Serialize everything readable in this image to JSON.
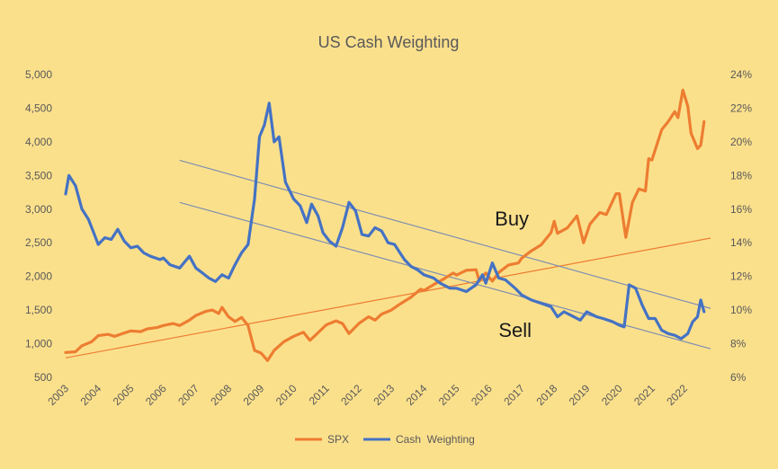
{
  "chart_data": {
    "type": "line",
    "title": "US Cash Weighting",
    "x_ticks": [
      "2003",
      "2004",
      "2005",
      "2006",
      "2007",
      "2008",
      "2009",
      "2010",
      "2011",
      "2012",
      "2013",
      "2014",
      "2015",
      "2016",
      "2017",
      "2018",
      "2019",
      "2020",
      "2021",
      "2022"
    ],
    "y_left_ticks": [
      "500",
      "1,000",
      "1,500",
      "2,000",
      "2,500",
      "3,000",
      "3,500",
      "4,000",
      "4,500",
      "5,000"
    ],
    "y_right_ticks": [
      "6%",
      "8%",
      "10%",
      "12%",
      "14%",
      "16%",
      "18%",
      "20%",
      "22%",
      "24%"
    ],
    "y_left_range": [
      500,
      5000
    ],
    "y_right_range": [
      6,
      24
    ],
    "x_range": [
      2003,
      2022.8
    ],
    "grid": false,
    "legend_position": "bottom",
    "colors": {
      "background": "#fbe08c",
      "spx": "#ed7d31",
      "cash": "#4472c4",
      "text": "#595959",
      "channel": "#7f8fb0"
    },
    "series": [
      {
        "name": "SPX",
        "axis": "left",
        "points": [
          [
            2003.0,
            870
          ],
          [
            2003.3,
            880
          ],
          [
            2003.5,
            970
          ],
          [
            2003.8,
            1030
          ],
          [
            2004.0,
            1120
          ],
          [
            2004.3,
            1140
          ],
          [
            2004.5,
            1110
          ],
          [
            2004.8,
            1160
          ],
          [
            2005.0,
            1190
          ],
          [
            2005.3,
            1180
          ],
          [
            2005.5,
            1220
          ],
          [
            2005.8,
            1240
          ],
          [
            2006.0,
            1270
          ],
          [
            2006.3,
            1300
          ],
          [
            2006.5,
            1270
          ],
          [
            2006.8,
            1350
          ],
          [
            2007.0,
            1420
          ],
          [
            2007.3,
            1480
          ],
          [
            2007.5,
            1500
          ],
          [
            2007.7,
            1450
          ],
          [
            2007.8,
            1540
          ],
          [
            2008.0,
            1400
          ],
          [
            2008.2,
            1330
          ],
          [
            2008.4,
            1390
          ],
          [
            2008.6,
            1270
          ],
          [
            2008.8,
            900
          ],
          [
            2009.0,
            860
          ],
          [
            2009.2,
            750
          ],
          [
            2009.4,
            900
          ],
          [
            2009.7,
            1030
          ],
          [
            2010.0,
            1110
          ],
          [
            2010.3,
            1170
          ],
          [
            2010.5,
            1050
          ],
          [
            2010.7,
            1140
          ],
          [
            2011.0,
            1280
          ],
          [
            2011.3,
            1340
          ],
          [
            2011.5,
            1300
          ],
          [
            2011.7,
            1150
          ],
          [
            2012.0,
            1300
          ],
          [
            2012.3,
            1400
          ],
          [
            2012.5,
            1350
          ],
          [
            2012.7,
            1440
          ],
          [
            2013.0,
            1500
          ],
          [
            2013.3,
            1600
          ],
          [
            2013.6,
            1690
          ],
          [
            2013.9,
            1810
          ],
          [
            2014.0,
            1790
          ],
          [
            2014.3,
            1880
          ],
          [
            2014.6,
            1960
          ],
          [
            2014.9,
            2050
          ],
          [
            2015.0,
            2020
          ],
          [
            2015.3,
            2090
          ],
          [
            2015.6,
            2100
          ],
          [
            2015.7,
            1930
          ],
          [
            2015.9,
            2050
          ],
          [
            2016.1,
            1930
          ],
          [
            2016.3,
            2060
          ],
          [
            2016.6,
            2170
          ],
          [
            2016.9,
            2200
          ],
          [
            2017.0,
            2270
          ],
          [
            2017.3,
            2380
          ],
          [
            2017.6,
            2470
          ],
          [
            2017.9,
            2650
          ],
          [
            2018.0,
            2820
          ],
          [
            2018.1,
            2640
          ],
          [
            2018.4,
            2720
          ],
          [
            2018.7,
            2900
          ],
          [
            2018.9,
            2500
          ],
          [
            2019.1,
            2780
          ],
          [
            2019.4,
            2950
          ],
          [
            2019.6,
            2920
          ],
          [
            2019.9,
            3230
          ],
          [
            2020.0,
            3230
          ],
          [
            2020.2,
            2580
          ],
          [
            2020.4,
            3100
          ],
          [
            2020.6,
            3300
          ],
          [
            2020.8,
            3270
          ],
          [
            2020.9,
            3750
          ],
          [
            2021.0,
            3730
          ],
          [
            2021.3,
            4180
          ],
          [
            2021.5,
            4300
          ],
          [
            2021.7,
            4450
          ],
          [
            2021.8,
            4360
          ],
          [
            2021.95,
            4770
          ],
          [
            2022.1,
            4530
          ],
          [
            2022.2,
            4130
          ],
          [
            2022.4,
            3900
          ],
          [
            2022.5,
            3950
          ],
          [
            2022.6,
            4300
          ]
        ]
      },
      {
        "name": "Cash Weighting",
        "axis": "right",
        "points": [
          [
            2003.0,
            16.9
          ],
          [
            2003.1,
            18.0
          ],
          [
            2003.3,
            17.4
          ],
          [
            2003.5,
            16.0
          ],
          [
            2003.7,
            15.4
          ],
          [
            2003.9,
            14.4
          ],
          [
            2004.0,
            13.9
          ],
          [
            2004.2,
            14.3
          ],
          [
            2004.4,
            14.2
          ],
          [
            2004.6,
            14.8
          ],
          [
            2004.8,
            14.1
          ],
          [
            2005.0,
            13.7
          ],
          [
            2005.2,
            13.8
          ],
          [
            2005.4,
            13.4
          ],
          [
            2005.6,
            13.2
          ],
          [
            2005.9,
            13.0
          ],
          [
            2006.0,
            13.1
          ],
          [
            2006.2,
            12.7
          ],
          [
            2006.5,
            12.5
          ],
          [
            2006.8,
            13.2
          ],
          [
            2007.0,
            12.5
          ],
          [
            2007.2,
            12.2
          ],
          [
            2007.4,
            11.9
          ],
          [
            2007.6,
            11.7
          ],
          [
            2007.8,
            12.1
          ],
          [
            2008.0,
            11.9
          ],
          [
            2008.2,
            12.7
          ],
          [
            2008.4,
            13.4
          ],
          [
            2008.6,
            13.9
          ],
          [
            2008.8,
            16.6
          ],
          [
            2008.95,
            20.3
          ],
          [
            2009.1,
            21.0
          ],
          [
            2009.25,
            22.3
          ],
          [
            2009.4,
            20.0
          ],
          [
            2009.55,
            20.3
          ],
          [
            2009.75,
            17.6
          ],
          [
            2010.0,
            16.6
          ],
          [
            2010.2,
            16.2
          ],
          [
            2010.4,
            15.2
          ],
          [
            2010.55,
            16.3
          ],
          [
            2010.75,
            15.6
          ],
          [
            2010.9,
            14.6
          ],
          [
            2011.1,
            14.1
          ],
          [
            2011.3,
            13.8
          ],
          [
            2011.5,
            14.9
          ],
          [
            2011.7,
            16.4
          ],
          [
            2011.9,
            15.9
          ],
          [
            2012.1,
            14.5
          ],
          [
            2012.3,
            14.4
          ],
          [
            2012.5,
            14.9
          ],
          [
            2012.7,
            14.7
          ],
          [
            2012.9,
            14.0
          ],
          [
            2013.1,
            13.9
          ],
          [
            2013.4,
            13.0
          ],
          [
            2013.6,
            12.6
          ],
          [
            2013.8,
            12.4
          ],
          [
            2014.0,
            12.1
          ],
          [
            2014.3,
            11.9
          ],
          [
            2014.5,
            11.6
          ],
          [
            2014.8,
            11.3
          ],
          [
            2015.0,
            11.3
          ],
          [
            2015.3,
            11.1
          ],
          [
            2015.6,
            11.5
          ],
          [
            2015.8,
            12.1
          ],
          [
            2015.9,
            11.6
          ],
          [
            2016.1,
            12.8
          ],
          [
            2016.3,
            11.9
          ],
          [
            2016.5,
            11.8
          ],
          [
            2016.8,
            11.3
          ],
          [
            2017.0,
            10.9
          ],
          [
            2017.3,
            10.6
          ],
          [
            2017.6,
            10.4
          ],
          [
            2017.9,
            10.2
          ],
          [
            2018.1,
            9.6
          ],
          [
            2018.3,
            9.9
          ],
          [
            2018.5,
            9.7
          ],
          [
            2018.8,
            9.4
          ],
          [
            2019.0,
            9.9
          ],
          [
            2019.3,
            9.6
          ],
          [
            2019.5,
            9.5
          ],
          [
            2019.8,
            9.3
          ],
          [
            2020.0,
            9.1
          ],
          [
            2020.15,
            9.0
          ],
          [
            2020.3,
            11.5
          ],
          [
            2020.5,
            11.3
          ],
          [
            2020.7,
            10.3
          ],
          [
            2020.9,
            9.5
          ],
          [
            2021.1,
            9.5
          ],
          [
            2021.3,
            8.8
          ],
          [
            2021.5,
            8.6
          ],
          [
            2021.7,
            8.5
          ],
          [
            2021.9,
            8.3
          ],
          [
            2022.1,
            8.6
          ],
          [
            2022.25,
            9.3
          ],
          [
            2022.4,
            9.6
          ],
          [
            2022.5,
            10.6
          ],
          [
            2022.6,
            9.9
          ]
        ]
      }
    ],
    "trend_lines": [
      {
        "id": "spx-trend",
        "axis": "left",
        "color": "#ed7d31",
        "from": [
          2003.0,
          790
        ],
        "to": [
          2022.8,
          2570
        ]
      },
      {
        "id": "buy-channel",
        "axis": "right",
        "color": "#7f8fb0",
        "from": [
          2006.5,
          18.9
        ],
        "to": [
          2022.8,
          10.1
        ]
      },
      {
        "id": "sell-channel",
        "axis": "right",
        "color": "#7f8fb0",
        "from": [
          2006.5,
          16.4
        ],
        "to": [
          2022.8,
          7.7
        ]
      }
    ],
    "annotations": [
      {
        "id": "buy",
        "text": "Buy",
        "x": 2016.7,
        "y_left": 2760
      },
      {
        "id": "sell",
        "text": "Sell",
        "x": 2016.8,
        "y_left": 1100
      }
    ],
    "legend": [
      "SPX",
      "Cash  Weighting"
    ]
  }
}
